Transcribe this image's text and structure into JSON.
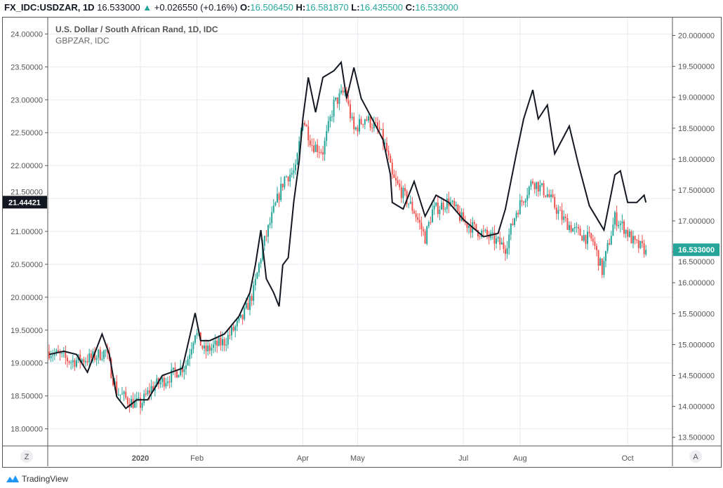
{
  "header": {
    "symbol": "FX_IDC:USDZAR, 1D",
    "last": "16.533000",
    "change": "+0.026550 (+0.16%)",
    "o_label": "O:",
    "o": "16.506450",
    "h_label": "H:",
    "h": "16.581870",
    "l_label": "L:",
    "l": "16.435500",
    "c_label": "C:",
    "c": "16.533000"
  },
  "legend": {
    "main": "U.S. Dollar / South African Rand, 1D, IDC",
    "compare": "GBPZAR, IDC"
  },
  "buttons": {
    "left": "Z",
    "right": "A"
  },
  "footer": {
    "brand": "TradingView"
  },
  "colors": {
    "up": "#26a69a",
    "down": "#ef5350",
    "line": "#131722"
  },
  "chart_data": {
    "type": "candlestick+line",
    "title": "U.S. Dollar / South African Rand, 1D, IDC",
    "x_ticks": [
      {
        "label": "2020",
        "t": 50
      },
      {
        "label": "Feb",
        "t": 81
      },
      {
        "label": "Apr",
        "t": 139
      },
      {
        "label": "May",
        "t": 169
      },
      {
        "label": "Jul",
        "t": 227
      },
      {
        "label": "Aug",
        "t": 258
      },
      {
        "label": "Oct",
        "t": 317
      }
    ],
    "left_axis": {
      "ylim": [
        17.74,
        24.25
      ],
      "ticks": [
        "24.00000",
        "23.50000",
        "23.00000",
        "22.50000",
        "22.00000",
        "21.50000",
        "21.00000",
        "20.50000",
        "20.00000",
        "19.50000",
        "19.00000",
        "18.50000",
        "18.00000"
      ],
      "current_label": "21.44421",
      "current": 21.44421
    },
    "right_axis": {
      "ylim": [
        13.36,
        20.29
      ],
      "ticks": [
        "20.000000",
        "19.500000",
        "19.000000",
        "18.500000",
        "18.000000",
        "17.500000",
        "17.000000",
        "16.500000",
        "16.000000",
        "15.500000",
        "15.000000",
        "14.500000",
        "14.000000",
        "13.500000"
      ],
      "current_label": "16.533000",
      "current": 16.533
    },
    "usdzar_close_keypoints": {
      "axis": "right",
      "t": [
        0,
        12,
        23,
        31,
        37,
        44,
        50,
        56,
        65,
        75,
        80,
        85,
        96,
        106,
        112,
        117,
        123,
        129,
        135,
        139,
        144,
        150,
        156,
        162,
        167,
        173,
        181,
        185,
        188,
        194,
        200,
        206,
        210,
        219,
        227,
        235,
        242,
        250,
        256,
        265,
        273,
        281,
        288,
        298,
        303,
        310,
        315,
        321,
        327
      ],
      "v": [
        14.89,
        14.73,
        14.78,
        14.89,
        14.24,
        14.08,
        14.03,
        14.3,
        14.46,
        14.68,
        15.22,
        14.89,
        15.05,
        15.43,
        15.86,
        16.57,
        17.16,
        17.7,
        17.81,
        18.67,
        18.24,
        18.13,
        18.89,
        19.1,
        18.46,
        18.67,
        18.46,
        18.13,
        17.7,
        17.43,
        17.16,
        16.73,
        17.16,
        17.32,
        16.99,
        16.84,
        16.73,
        16.57,
        17.16,
        17.65,
        17.43,
        17.05,
        16.84,
        16.67,
        16.19,
        17.05,
        16.89,
        16.62,
        16.53
      ]
    },
    "gbpzar_line": {
      "name": "GBPZAR, IDC",
      "axis": "left",
      "t": [
        0,
        8,
        15,
        21,
        29,
        33,
        37,
        42,
        48,
        54,
        62,
        73,
        80,
        83,
        88,
        96,
        104,
        110,
        113,
        116,
        119,
        123,
        126,
        128,
        131,
        134,
        137,
        139,
        142,
        146,
        150,
        156,
        160,
        163,
        167,
        171,
        177,
        183,
        187,
        188,
        194,
        200,
        206,
        212,
        219,
        227,
        238,
        246,
        250,
        256,
        260,
        265,
        268,
        273,
        277,
        285,
        290,
        296,
        304,
        310,
        313,
        317,
        322,
        326,
        327
      ],
      "v": [
        19.13,
        19.18,
        19.13,
        18.86,
        19.44,
        19.13,
        18.49,
        18.31,
        18.44,
        18.44,
        18.81,
        18.92,
        19.76,
        19.34,
        19.34,
        19.44,
        19.71,
        20.07,
        20.49,
        21.02,
        20.28,
        20.07,
        19.86,
        20.49,
        20.6,
        21.44,
        22.07,
        22.71,
        23.34,
        22.81,
        23.34,
        23.44,
        23.57,
        23.02,
        23.49,
        23.02,
        22.71,
        22.39,
        21.86,
        21.44,
        21.34,
        21.76,
        21.23,
        21.55,
        21.44,
        21.18,
        20.92,
        20.97,
        21.34,
        22.18,
        22.71,
        23.15,
        22.71,
        22.92,
        22.18,
        22.6,
        22.02,
        21.39,
        21.02,
        21.86,
        21.92,
        21.44,
        21.44,
        21.55,
        21.44
      ]
    }
  }
}
